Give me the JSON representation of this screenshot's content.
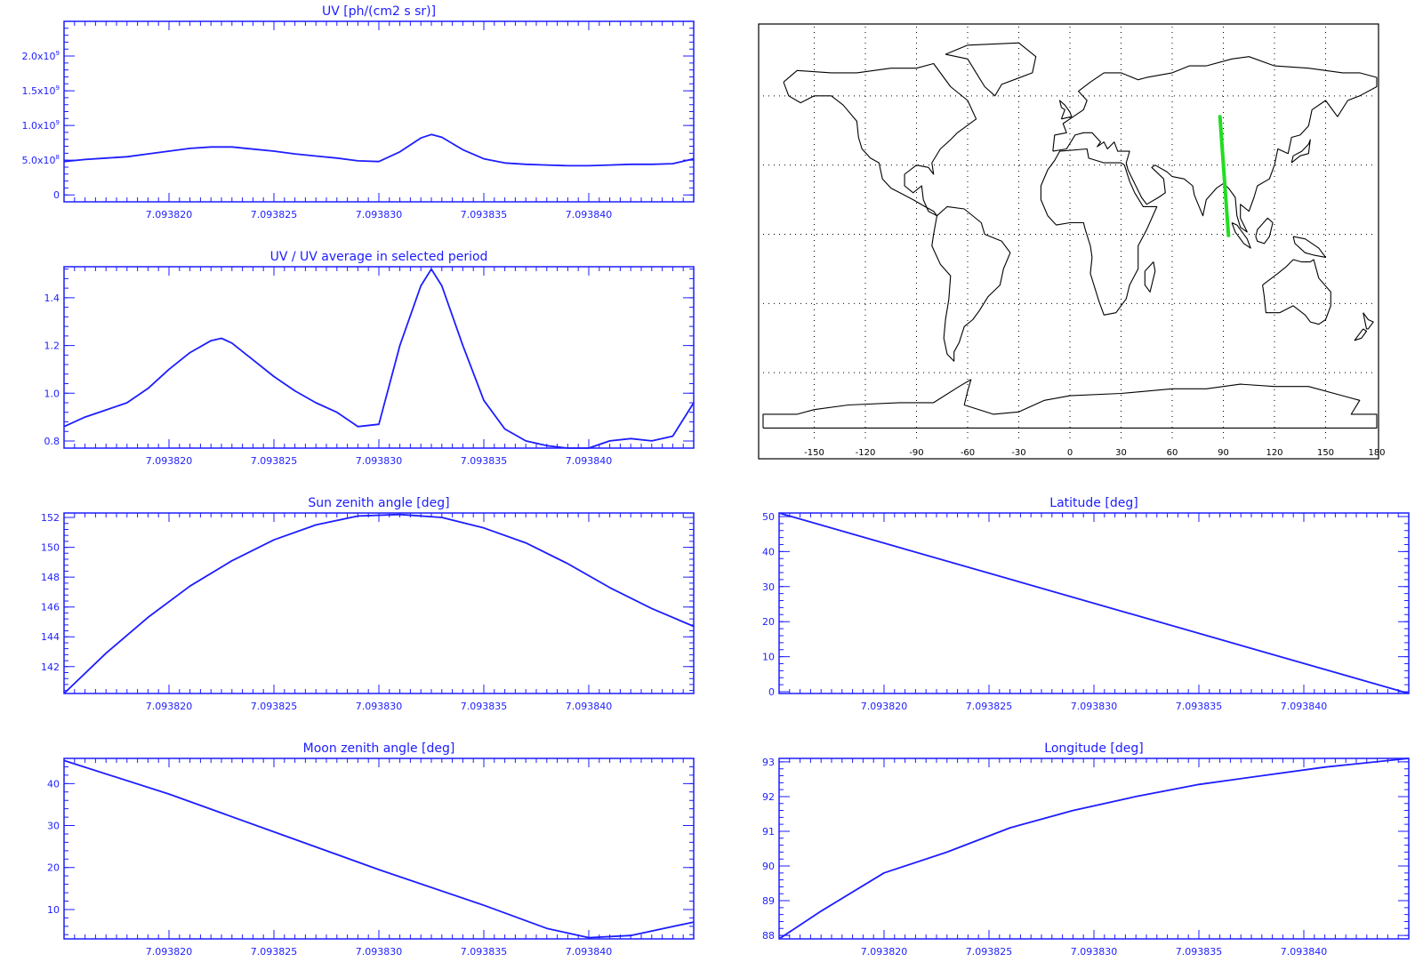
{
  "chart_data": [
    {
      "id": "uv",
      "type": "line",
      "title": "UV [ph/(cm2 s sr)]",
      "xlabel": "",
      "ylabel": "",
      "xlim": [
        7.093815,
        7.093845
      ],
      "ylim": [
        -100000000,
        2500000000
      ],
      "xticks": [
        7.09382,
        7.093825,
        7.09383,
        7.093835,
        7.09384
      ],
      "xtick_labels": [
        "7.093820",
        "7.093825",
        "7.093830",
        "7.093835",
        "7.093840"
      ],
      "yticks": [
        0,
        500000000,
        1000000000,
        1500000000,
        2000000000
      ],
      "ytick_labels": [
        {
          "mant": "0",
          "exp": ""
        },
        {
          "mant": "5.0x10",
          "exp": "8"
        },
        {
          "mant": "1.0x10",
          "exp": "9"
        },
        {
          "mant": "1.5x10",
          "exp": "9"
        },
        {
          "mant": "2.0x10",
          "exp": "9"
        }
      ],
      "grid": false,
      "color": "#1d1dff",
      "series": [
        {
          "x": [
            7.093815,
            7.093816,
            7.093817,
            7.093818,
            7.093819,
            7.09382,
            7.093821,
            7.093822,
            7.093823,
            7.093824,
            7.093825,
            7.093826,
            7.093827,
            7.093828,
            7.093829,
            7.09383,
            7.093831,
            7.093832,
            7.0938325,
            7.093833,
            7.093834,
            7.093835,
            7.093836,
            7.093837,
            7.093838,
            7.093839,
            7.09384,
            7.093841,
            7.093842,
            7.093843,
            7.093844,
            7.093845
          ],
          "values": [
            480000000,
            510000000,
            530000000,
            550000000,
            590000000,
            630000000,
            670000000,
            690000000,
            690000000,
            660000000,
            630000000,
            590000000,
            560000000,
            530000000,
            490000000,
            480000000,
            620000000,
            820000000,
            870000000,
            830000000,
            650000000,
            520000000,
            460000000,
            440000000,
            430000000,
            420000000,
            420000000,
            430000000,
            440000000,
            440000000,
            450000000,
            520000000
          ]
        }
      ]
    },
    {
      "id": "uv-ratio",
      "type": "line",
      "title": "UV / UV average in selected period",
      "xlabel": "",
      "ylabel": "",
      "xlim": [
        7.093815,
        7.093845
      ],
      "ylim": [
        0.77,
        1.53
      ],
      "xticks": [
        7.09382,
        7.093825,
        7.09383,
        7.093835,
        7.09384
      ],
      "xtick_labels": [
        "7.093820",
        "7.093825",
        "7.093830",
        "7.093835",
        "7.093840"
      ],
      "yticks": [
        0.8,
        1.0,
        1.2,
        1.4
      ],
      "ytick_labels": [
        "0.8",
        "1.0",
        "1.2",
        "1.4"
      ],
      "grid": false,
      "color": "#1d1dff",
      "series": [
        {
          "x": [
            7.093815,
            7.093816,
            7.093817,
            7.093818,
            7.093819,
            7.09382,
            7.093821,
            7.093822,
            7.0938225,
            7.093823,
            7.093824,
            7.093825,
            7.093826,
            7.093827,
            7.093828,
            7.093829,
            7.09383,
            7.093831,
            7.093832,
            7.0938325,
            7.093833,
            7.093834,
            7.093835,
            7.093836,
            7.093837,
            7.093838,
            7.093839,
            7.09384,
            7.093841,
            7.093842,
            7.093843,
            7.093844,
            7.093845
          ],
          "values": [
            0.86,
            0.9,
            0.93,
            0.96,
            1.02,
            1.1,
            1.17,
            1.22,
            1.23,
            1.21,
            1.14,
            1.07,
            1.01,
            0.96,
            0.92,
            0.86,
            0.87,
            1.2,
            1.45,
            1.52,
            1.45,
            1.2,
            0.97,
            0.85,
            0.8,
            0.78,
            0.77,
            0.77,
            0.8,
            0.81,
            0.8,
            0.82,
            0.96
          ]
        }
      ]
    },
    {
      "id": "sun-zenith",
      "type": "line",
      "title": "Sun zenith angle [deg]",
      "xlabel": "",
      "ylabel": "",
      "xlim": [
        7.093815,
        7.093845
      ],
      "ylim": [
        140.2,
        152.3
      ],
      "xticks": [
        7.09382,
        7.093825,
        7.09383,
        7.093835,
        7.09384
      ],
      "xtick_labels": [
        "7.093820",
        "7.093825",
        "7.093830",
        "7.093835",
        "7.093840"
      ],
      "yticks": [
        142,
        144,
        146,
        148,
        150,
        152
      ],
      "ytick_labels": [
        "142",
        "144",
        "146",
        "148",
        "150",
        "152"
      ],
      "grid": false,
      "color": "#1d1dff",
      "series": [
        {
          "x": [
            7.093815,
            7.093817,
            7.093819,
            7.093821,
            7.093823,
            7.093825,
            7.093827,
            7.093829,
            7.093831,
            7.093833,
            7.093835,
            7.093837,
            7.093839,
            7.093841,
            7.093843,
            7.093845
          ],
          "values": [
            140.2,
            142.9,
            145.3,
            147.4,
            149.1,
            150.5,
            151.5,
            152.1,
            152.2,
            152.0,
            151.3,
            150.3,
            148.9,
            147.3,
            145.9,
            144.7
          ]
        }
      ]
    },
    {
      "id": "latitude",
      "type": "line",
      "title": "Latitude [deg]",
      "xlabel": "",
      "ylabel": "",
      "xlim": [
        7.093815,
        7.093845
      ],
      "ylim": [
        -0.5,
        51
      ],
      "xticks": [
        7.09382,
        7.093825,
        7.09383,
        7.093835,
        7.09384
      ],
      "xtick_labels": [
        "7.093820",
        "7.093825",
        "7.093830",
        "7.093835",
        "7.093840"
      ],
      "yticks": [
        0,
        10,
        20,
        30,
        40,
        50
      ],
      "ytick_labels": [
        "0",
        "10",
        "20",
        "30",
        "40",
        "50"
      ],
      "grid": false,
      "color": "#1d1dff",
      "series": [
        {
          "x": [
            7.093815,
            7.093845
          ],
          "values": [
            51,
            -0.5
          ]
        }
      ]
    },
    {
      "id": "moon-zenith",
      "type": "line",
      "title": "Moon zenith angle [deg]",
      "xlabel": "",
      "ylabel": "",
      "xlim": [
        7.093815,
        7.093845
      ],
      "ylim": [
        3,
        46
      ],
      "xticks": [
        7.09382,
        7.093825,
        7.09383,
        7.093835,
        7.09384
      ],
      "xtick_labels": [
        "7.093820",
        "7.093825",
        "7.093830",
        "7.093835",
        "7.093840"
      ],
      "yticks": [
        10,
        20,
        30,
        40
      ],
      "ytick_labels": [
        "10",
        "20",
        "30",
        "40"
      ],
      "grid": false,
      "color": "#1d1dff",
      "series": [
        {
          "x": [
            7.093815,
            7.09382,
            7.093825,
            7.09383,
            7.093835,
            7.093838,
            7.09384,
            7.093842,
            7.093845
          ],
          "values": [
            45.5,
            37.5,
            28.5,
            19.5,
            11.0,
            5.5,
            3.3,
            3.8,
            7.0
          ]
        }
      ]
    },
    {
      "id": "longitude",
      "type": "line",
      "title": "Longitude [deg]",
      "xlabel": "",
      "ylabel": "",
      "xlim": [
        7.093815,
        7.093845
      ],
      "ylim": [
        87.9,
        93.1
      ],
      "xticks": [
        7.09382,
        7.093825,
        7.09383,
        7.093835,
        7.09384
      ],
      "xtick_labels": [
        "7.093820",
        "7.093825",
        "7.093830",
        "7.093835",
        "7.093840"
      ],
      "yticks": [
        88,
        89,
        90,
        91,
        92,
        93
      ],
      "ytick_labels": [
        "88",
        "89",
        "90",
        "91",
        "92",
        "93"
      ],
      "grid": false,
      "color": "#1d1dff",
      "series": [
        {
          "x": [
            7.093815,
            7.093817,
            7.09382,
            7.093823,
            7.093826,
            7.093829,
            7.093832,
            7.093835,
            7.093838,
            7.093841,
            7.093845
          ],
          "values": [
            87.9,
            88.7,
            89.8,
            90.4,
            91.1,
            91.6,
            92.0,
            92.35,
            92.6,
            92.85,
            93.1
          ]
        }
      ]
    }
  ],
  "map": {
    "type": "map",
    "projection": "cylindrical",
    "lon_range": [
      -180,
      180
    ],
    "lat_range": [
      -90,
      90
    ],
    "grid": "dotted",
    "lon_tick_labels": [
      "-150",
      "-120",
      "-90",
      "-60",
      "-30",
      "0",
      "30",
      "60",
      "90",
      "120",
      "150",
      "180"
    ],
    "track_color": "#22dd22",
    "track": [
      {
        "lon": 88,
        "lat": 51
      },
      {
        "lon": 90.5,
        "lat": 25
      },
      {
        "lon": 93,
        "lat": -0.5
      }
    ]
  }
}
